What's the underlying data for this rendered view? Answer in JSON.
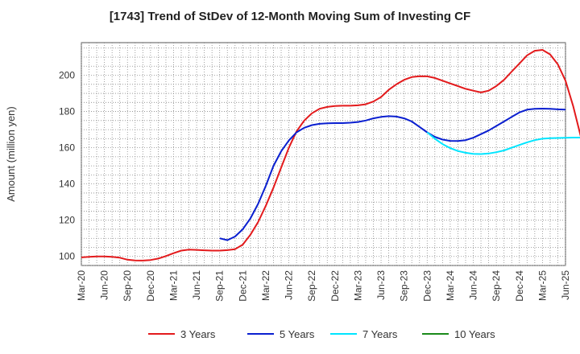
{
  "chart_data": {
    "type": "line",
    "title": "[1743]  Trend of StDev of 12-Month Moving Sum of Investing CF",
    "xlabel": "",
    "ylabel": "Amount (million yen)",
    "ylim": [
      95,
      218
    ],
    "yticks": [
      100,
      120,
      140,
      160,
      180,
      200
    ],
    "x_tick_labels": [
      "Mar-20",
      "Jun-20",
      "Sep-20",
      "Dec-20",
      "Mar-21",
      "Jun-21",
      "Sep-21",
      "Dec-21",
      "Mar-22",
      "Jun-22",
      "Sep-22",
      "Dec-22",
      "Mar-23",
      "Jun-23",
      "Sep-23",
      "Dec-23",
      "Mar-24",
      "Jun-24",
      "Sep-24",
      "Dec-24",
      "Mar-25",
      "Jun-25"
    ],
    "grid": true,
    "legend_position": "bottom",
    "series": [
      {
        "name": "3 Years",
        "color": "#e31a1c",
        "start_index": 0,
        "values": [
          99.5,
          99.8,
          100,
          100,
          99.8,
          99.3,
          98.2,
          97.8,
          97.7,
          98,
          98.8,
          100.2,
          101.8,
          103.2,
          103.8,
          103.6,
          103.4,
          103.2,
          103.2,
          103.5,
          104,
          106.5,
          112,
          119,
          128,
          138,
          149,
          160,
          169,
          175,
          179,
          181.5,
          182.5,
          183,
          183.2,
          183.2,
          183.4,
          184,
          185.5,
          188,
          192,
          195,
          197.5,
          199,
          199.5,
          199.4,
          198.5,
          197,
          195.5,
          194,
          192.5,
          191.5,
          190.5,
          191.5,
          194,
          197.5,
          202,
          206.5,
          211,
          213.5,
          214,
          211.5,
          206,
          197,
          183,
          166
        ]
      },
      {
        "name": "5 Years",
        "color": "#0a1fd0",
        "start_index": 18,
        "values": [
          110,
          109,
          111,
          115,
          121,
          129,
          139,
          150,
          158,
          164,
          168.5,
          171,
          172.5,
          173.2,
          173.5,
          173.6,
          173.6,
          173.8,
          174.2,
          175,
          176.2,
          177,
          177.4,
          177.2,
          176.2,
          174.5,
          171.5,
          168.5,
          166,
          164.5,
          163.8,
          163.7,
          164.2,
          165.5,
          167.5,
          169.5,
          172,
          174.5,
          177,
          179.5,
          181,
          181.5,
          181.6,
          181.5,
          181.2,
          181
        ]
      },
      {
        "name": "7 Years",
        "color": "#00e5ff",
        "start_index": 45,
        "values": [
          168.5,
          165,
          162,
          159.8,
          158.2,
          157.2,
          156.6,
          156.5,
          156.8,
          157.5,
          158.5,
          160,
          161.5,
          163,
          164.2,
          165,
          165.3,
          165.4,
          165.5,
          165.6,
          165.6
        ]
      },
      {
        "name": "10 Years",
        "color": "#1a8a1a",
        "start_index": 0,
        "values": []
      }
    ]
  }
}
